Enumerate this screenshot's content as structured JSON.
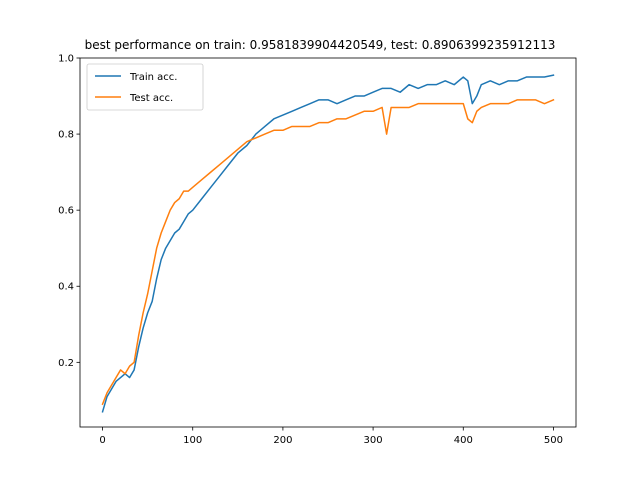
{
  "chart_data": {
    "type": "line",
    "title": "best performance on train: 0.9581839904420549, test: 0.8906399235912113",
    "xlabel": "",
    "ylabel": "",
    "xlim": [
      -25,
      525
    ],
    "ylim": [
      0.03,
      1.0
    ],
    "xticks": [
      0,
      100,
      200,
      300,
      400,
      500
    ],
    "yticks": [
      0.2,
      0.4,
      0.6,
      0.8,
      1.0
    ],
    "xtick_labels": [
      "0",
      "100",
      "200",
      "300",
      "400",
      "500"
    ],
    "ytick_labels": [
      "0.2",
      "0.4",
      "0.6",
      "0.8",
      "1.0"
    ],
    "grid": false,
    "legend_position": "top-left",
    "series": [
      {
        "name": "Train acc.",
        "color": "#1f77b4",
        "x": [
          0,
          5,
          10,
          15,
          20,
          25,
          30,
          35,
          40,
          45,
          50,
          55,
          60,
          65,
          70,
          75,
          80,
          85,
          90,
          95,
          100,
          110,
          120,
          130,
          140,
          150,
          160,
          170,
          180,
          190,
          200,
          210,
          220,
          230,
          240,
          250,
          260,
          270,
          280,
          290,
          300,
          310,
          320,
          330,
          340,
          350,
          360,
          370,
          380,
          390,
          400,
          405,
          410,
          415,
          420,
          430,
          440,
          450,
          460,
          470,
          480,
          490,
          500
        ],
        "y": [
          0.07,
          0.11,
          0.13,
          0.15,
          0.16,
          0.17,
          0.16,
          0.18,
          0.24,
          0.29,
          0.33,
          0.36,
          0.42,
          0.47,
          0.5,
          0.52,
          0.54,
          0.55,
          0.57,
          0.59,
          0.6,
          0.63,
          0.66,
          0.69,
          0.72,
          0.75,
          0.77,
          0.8,
          0.82,
          0.84,
          0.85,
          0.86,
          0.87,
          0.88,
          0.89,
          0.89,
          0.88,
          0.89,
          0.9,
          0.9,
          0.91,
          0.92,
          0.92,
          0.91,
          0.93,
          0.92,
          0.93,
          0.93,
          0.94,
          0.93,
          0.95,
          0.94,
          0.88,
          0.9,
          0.93,
          0.94,
          0.93,
          0.94,
          0.94,
          0.95,
          0.95,
          0.95,
          0.955
        ]
      },
      {
        "name": "Test acc.",
        "color": "#ff7f0e",
        "x": [
          0,
          5,
          10,
          15,
          20,
          25,
          30,
          35,
          40,
          45,
          50,
          55,
          60,
          65,
          70,
          75,
          80,
          85,
          90,
          95,
          100,
          110,
          120,
          130,
          140,
          150,
          160,
          170,
          180,
          190,
          200,
          210,
          220,
          230,
          240,
          250,
          260,
          270,
          280,
          290,
          300,
          310,
          315,
          320,
          330,
          340,
          350,
          360,
          370,
          380,
          390,
          400,
          405,
          410,
          415,
          420,
          430,
          440,
          450,
          460,
          470,
          480,
          490,
          500
        ],
        "y": [
          0.09,
          0.12,
          0.14,
          0.16,
          0.18,
          0.17,
          0.19,
          0.2,
          0.27,
          0.33,
          0.38,
          0.44,
          0.5,
          0.54,
          0.57,
          0.6,
          0.62,
          0.63,
          0.65,
          0.65,
          0.66,
          0.68,
          0.7,
          0.72,
          0.74,
          0.76,
          0.78,
          0.79,
          0.8,
          0.81,
          0.81,
          0.82,
          0.82,
          0.82,
          0.83,
          0.83,
          0.84,
          0.84,
          0.85,
          0.86,
          0.86,
          0.87,
          0.8,
          0.87,
          0.87,
          0.87,
          0.88,
          0.88,
          0.88,
          0.88,
          0.88,
          0.88,
          0.84,
          0.83,
          0.86,
          0.87,
          0.88,
          0.88,
          0.88,
          0.89,
          0.89,
          0.89,
          0.88,
          0.89
        ]
      }
    ]
  }
}
